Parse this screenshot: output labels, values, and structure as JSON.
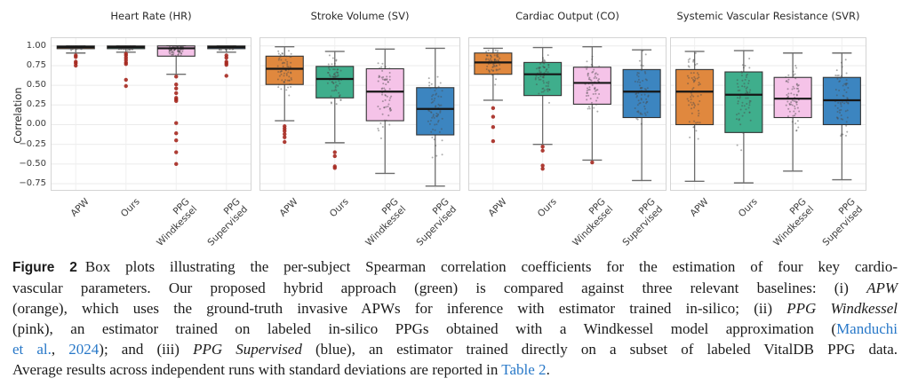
{
  "figure": {
    "ylabel": "Correlation",
    "ytick_labels": [
      "1.00",
      "0.75",
      "0.50",
      "0.25",
      "0.00",
      "−0.25",
      "−0.50",
      "−0.75"
    ],
    "ytick_values": [
      1.0,
      0.75,
      0.5,
      0.25,
      0.0,
      -0.25,
      -0.5,
      -0.75
    ],
    "colors": {
      "apw": "#E0883E",
      "ours": "#3FAE8C",
      "ppg_windkessel": "#F5C3E8",
      "ppg_supervised": "#3C85C0",
      "outlier": "#A5281F",
      "whisker": "#6e6e6e",
      "box_edge": "#333333",
      "median": "#161616",
      "strip_dot": "#4a4a4a",
      "link_blue": "#2878C8"
    }
  },
  "chart_data": [
    {
      "type": "box",
      "title": "Heart Rate (HR)",
      "ylabel": "Correlation",
      "ylim": [
        -0.84,
        1.11
      ],
      "categories": [
        "APW",
        "Ours",
        "PPG\nWindkessel",
        "PPG\nSupervised"
      ],
      "series": [
        {
          "name": "APW",
          "color": "#E0883E",
          "whislo": 0.91,
          "q1": 0.965,
          "med": 0.985,
          "q3": 1.0,
          "whishi": 1.0,
          "outliers": [
            0.88,
            0.86,
            0.8,
            0.78,
            0.75
          ]
        },
        {
          "name": "Ours",
          "color": "#3FAE8C",
          "whislo": 0.92,
          "q1": 0.965,
          "med": 0.985,
          "q3": 1.0,
          "whishi": 1.0,
          "outliers": [
            0.9,
            0.88,
            0.85,
            0.82,
            0.79,
            0.77,
            0.57,
            0.49
          ]
        },
        {
          "name": "PPG Windkessel",
          "color": "#F5C3E8",
          "whislo": 0.64,
          "q1": 0.87,
          "med": 0.97,
          "q3": 1.0,
          "whishi": 1.0,
          "outliers": [
            0.61,
            0.51,
            0.46,
            0.4,
            0.34,
            0.32,
            0.3,
            0.02,
            -0.11,
            -0.2,
            -0.35,
            -0.5
          ]
        },
        {
          "name": "PPG Supervised",
          "color": "#3C85C0",
          "whislo": 0.92,
          "q1": 0.965,
          "med": 0.985,
          "q3": 1.0,
          "whishi": 1.0,
          "outliers": [
            0.88,
            0.85,
            0.8,
            0.78,
            0.76,
            0.62
          ]
        }
      ]
    },
    {
      "type": "box",
      "title": "Stroke Volume (SV)",
      "ylim": [
        -0.84,
        1.11
      ],
      "categories": [
        "APW",
        "Ours",
        "PPG\nWindkessel",
        "PPG\nSupervised"
      ],
      "series": [
        {
          "name": "APW",
          "color": "#E0883E",
          "whislo": 0.05,
          "q1": 0.51,
          "med": 0.71,
          "q3": 0.87,
          "whishi": 0.99,
          "outliers": [
            -0.02,
            -0.05,
            -0.08,
            -0.12,
            -0.16,
            -0.22
          ]
        },
        {
          "name": "Ours",
          "color": "#3FAE8C",
          "whislo": -0.23,
          "q1": 0.34,
          "med": 0.58,
          "q3": 0.74,
          "whishi": 0.93,
          "outliers": [
            -0.35,
            -0.4,
            -0.53,
            -0.55
          ]
        },
        {
          "name": "PPG Windkessel",
          "color": "#F5C3E8",
          "whislo": -0.62,
          "q1": 0.05,
          "med": 0.42,
          "q3": 0.71,
          "whishi": 0.96,
          "outliers": []
        },
        {
          "name": "PPG Supervised",
          "color": "#3C85C0",
          "whislo": -0.78,
          "q1": -0.13,
          "med": 0.2,
          "q3": 0.47,
          "whishi": 0.97,
          "outliers": []
        }
      ]
    },
    {
      "type": "box",
      "title": "Cardiac Output (CO)",
      "ylim": [
        -0.84,
        1.11
      ],
      "categories": [
        "APW",
        "Ours",
        "PPG\nWindkessel",
        "PPG\nSupervised"
      ],
      "series": [
        {
          "name": "APW",
          "color": "#E0883E",
          "whislo": 0.31,
          "q1": 0.64,
          "med": 0.79,
          "q3": 0.91,
          "whishi": 0.97,
          "outliers": [
            0.21,
            0.1,
            -0.03,
            -0.21
          ]
        },
        {
          "name": "Ours",
          "color": "#3FAE8C",
          "whislo": -0.25,
          "q1": 0.37,
          "med": 0.64,
          "q3": 0.79,
          "whishi": 0.98,
          "outliers": [
            -0.28,
            -0.33,
            -0.52,
            -0.56
          ]
        },
        {
          "name": "PPG Windkessel",
          "color": "#F5C3E8",
          "whislo": -0.45,
          "q1": 0.26,
          "med": 0.53,
          "q3": 0.73,
          "whishi": 0.99,
          "outliers": [
            -0.48
          ]
        },
        {
          "name": "PPG Supervised",
          "color": "#3C85C0",
          "whislo": -0.71,
          "q1": 0.09,
          "med": 0.42,
          "q3": 0.7,
          "whishi": 0.95,
          "outliers": []
        }
      ]
    },
    {
      "type": "box",
      "title": "Systemic Vascular Resistance (SVR)",
      "ylim": [
        -0.84,
        1.11
      ],
      "categories": [
        "APW",
        "Ours",
        "PPG\nWindkessel",
        "PPG\nSupervised"
      ],
      "series": [
        {
          "name": "APW",
          "color": "#E0883E",
          "whislo": -0.72,
          "q1": 0.0,
          "med": 0.42,
          "q3": 0.7,
          "whishi": 0.93,
          "outliers": []
        },
        {
          "name": "Ours",
          "color": "#3FAE8C",
          "whislo": -0.74,
          "q1": -0.1,
          "med": 0.38,
          "q3": 0.67,
          "whishi": 0.94,
          "outliers": []
        },
        {
          "name": "PPG Windkessel",
          "color": "#F5C3E8",
          "whislo": -0.59,
          "q1": 0.09,
          "med": 0.33,
          "q3": 0.6,
          "whishi": 0.91,
          "outliers": []
        },
        {
          "name": "PPG Supervised",
          "color": "#3C85C0",
          "whislo": -0.7,
          "q1": 0.0,
          "med": 0.31,
          "q3": 0.6,
          "whishi": 0.91,
          "outliers": []
        }
      ]
    }
  ],
  "caption": {
    "lines": [
      {
        "justify": true,
        "segments": [
          {
            "t": "Figure 2",
            "style": "figlabel"
          },
          {
            "t": "Box plots illustrating the per-subject Spearman correlation coefficients for the estimation of four key cardio-",
            "style": "normal"
          }
        ]
      },
      {
        "justify": true,
        "segments": [
          {
            "t": "vascular parameters.  Our proposed hybrid approach (green) is compared against three relevant baselines: (i) ",
            "style": "normal"
          },
          {
            "t": "APW",
            "style": "italic"
          }
        ]
      },
      {
        "justify": true,
        "segments": [
          {
            "t": "(orange), which uses the ground-truth invasive APWs for inference with estimator trained in-silico; (ii) ",
            "style": "normal"
          },
          {
            "t": "PPG Windkessel",
            "style": "italic"
          }
        ]
      },
      {
        "justify": true,
        "segments": [
          {
            "t": "(pink), an estimator trained on labeled in-silico PPGs obtained with a Windkessel model approximation (",
            "style": "normal"
          },
          {
            "t": "Manduchi",
            "style": "link"
          }
        ]
      },
      {
        "justify": true,
        "segments": [
          {
            "t": "et al.",
            "style": "link"
          },
          {
            "t": ", ",
            "style": "normal"
          },
          {
            "t": "2024",
            "style": "link"
          },
          {
            "t": "); and (iii) ",
            "style": "normal"
          },
          {
            "t": "PPG Supervised",
            "style": "italic"
          },
          {
            "t": " (blue), an estimator trained directly on a subset of labeled VitalDB PPG data.",
            "style": "normal"
          }
        ]
      },
      {
        "justify": false,
        "segments": [
          {
            "t": "Average results across independent runs with standard deviations are reported in ",
            "style": "normal"
          },
          {
            "t": "Table 2",
            "style": "link"
          },
          {
            "t": ".",
            "style": "normal"
          }
        ]
      }
    ]
  }
}
